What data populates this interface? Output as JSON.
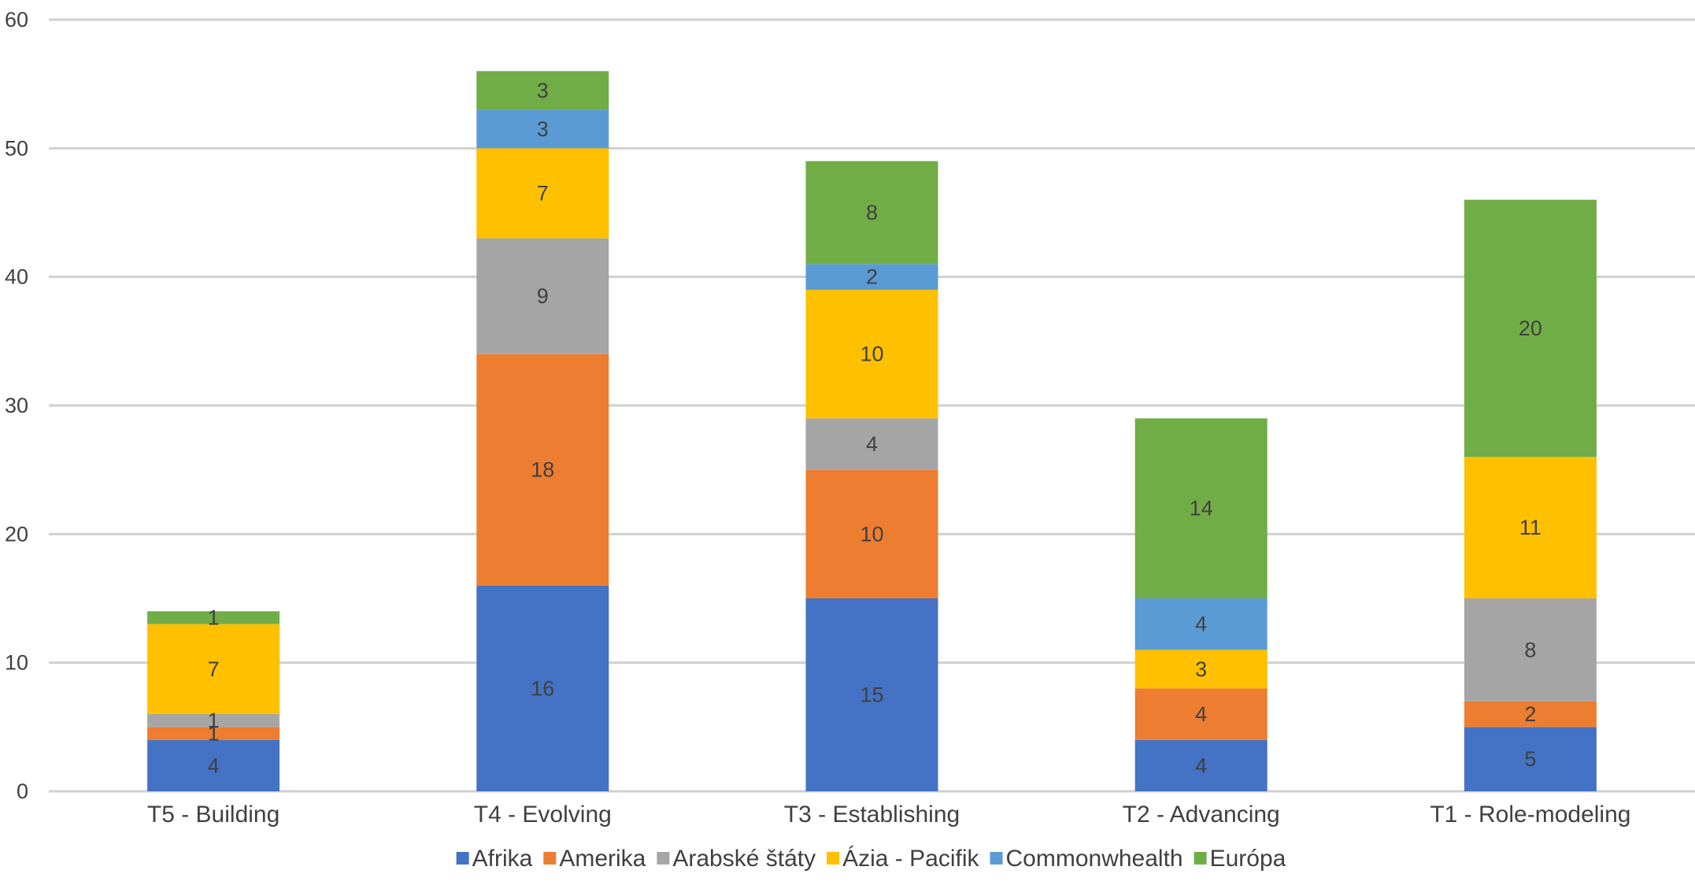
{
  "chart_data": {
    "type": "bar",
    "stacked": true,
    "categories": [
      "T5 - Building",
      "T4 - Evolving",
      "T3 - Establishing",
      "T2 - Advancing",
      "T1 - Role-modeling"
    ],
    "series": [
      {
        "name": "Afrika",
        "color": "#4472C4",
        "values": [
          4,
          16,
          15,
          4,
          5
        ]
      },
      {
        "name": "Amerika",
        "color": "#ED7D31",
        "values": [
          1,
          18,
          10,
          4,
          2
        ]
      },
      {
        "name": "Arabské štáty",
        "color": "#A5A5A5",
        "values": [
          1,
          9,
          4,
          0,
          8
        ]
      },
      {
        "name": "Ázia - Pacifik",
        "color": "#FFC000",
        "values": [
          7,
          7,
          10,
          3,
          11
        ]
      },
      {
        "name": "Commonwhealth",
        "color": "#5B9BD5",
        "values": [
          0,
          3,
          2,
          4,
          0
        ]
      },
      {
        "name": "Európa",
        "color": "#70AD47",
        "values": [
          1,
          3,
          8,
          14,
          20
        ]
      }
    ],
    "ylim": [
      0,
      60
    ],
    "yticks": [
      0,
      10,
      20,
      30,
      40,
      50,
      60
    ],
    "grid": true,
    "legend_position": "bottom",
    "title": "",
    "xlabel": "",
    "ylabel": ""
  }
}
